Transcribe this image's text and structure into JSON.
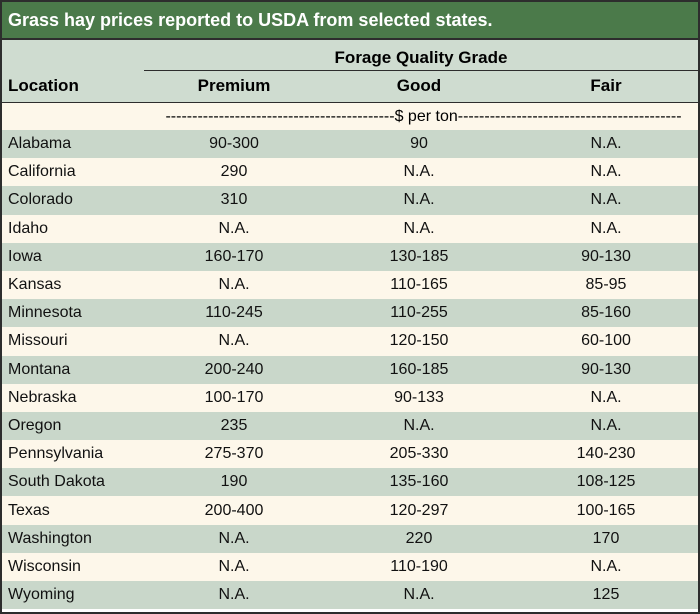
{
  "title": "Grass hay prices reported to USDA from selected states.",
  "group_header": "Forage Quality Grade",
  "columns": {
    "location": "Location",
    "premium": "Premium",
    "good": "Good",
    "fair": "Fair"
  },
  "units": "-------------------------------------------$ per ton------------------------------------------",
  "rows": [
    {
      "location": "Alabama",
      "premium": "90-300",
      "good": "90",
      "fair": "N.A."
    },
    {
      "location": "California",
      "premium": "290",
      "good": "N.A.",
      "fair": "N.A."
    },
    {
      "location": "Colorado",
      "premium": "310",
      "good": "N.A.",
      "fair": "N.A."
    },
    {
      "location": "Idaho",
      "premium": "N.A.",
      "good": "N.A.",
      "fair": "N.A."
    },
    {
      "location": "Iowa",
      "premium": "160-170",
      "good": "130-185",
      "fair": "90-130"
    },
    {
      "location": "Kansas",
      "premium": "N.A.",
      "good": "110-165",
      "fair": "85-95"
    },
    {
      "location": "Minnesota",
      "premium": "110-245",
      "good": "110-255",
      "fair": "85-160"
    },
    {
      "location": "Missouri",
      "premium": "N.A.",
      "good": "120-150",
      "fair": "60-100"
    },
    {
      "location": "Montana",
      "premium": "200-240",
      "good": "160-185",
      "fair": "90-130"
    },
    {
      "location": "Nebraska",
      "premium": "100-170",
      "good": "90-133",
      "fair": "N.A."
    },
    {
      "location": "Oregon",
      "premium": "235",
      "good": "N.A.",
      "fair": "N.A."
    },
    {
      "location": "Pennsylvania",
      "premium": "275-370",
      "good": "205-330",
      "fair": "140-230"
    },
    {
      "location": "South Dakota",
      "premium": "190",
      "good": "135-160",
      "fair": "108-125"
    },
    {
      "location": "Texas",
      "premium": "200-400",
      "good": "120-297",
      "fair": "100-165"
    },
    {
      "location": "Washington",
      "premium": "N.A.",
      "good": "220",
      "fair": "170"
    },
    {
      "location": "Wisconsin",
      "premium": "N.A.",
      "good": "110-190",
      "fair": "N.A."
    },
    {
      "location": "Wyoming",
      "premium": "N.A.",
      "good": "N.A.",
      "fair": "125"
    }
  ],
  "colors": {
    "title_bg": "#4b7a4a",
    "row_green": "#c9d7ca",
    "row_cream": "#fdf7ea",
    "header_bg": "#cfdcd0"
  }
}
